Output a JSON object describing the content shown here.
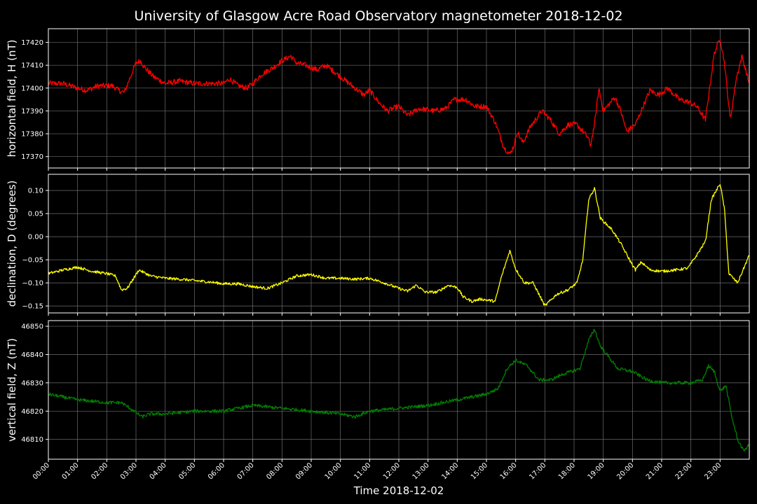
{
  "chart_data": {
    "type": "line",
    "title": "University of Glasgow Acre Road Observatory magnetometer 2018-12-02",
    "xlabel": "Time 2018-12-02",
    "x_range_hours": [
      0,
      24
    ],
    "x_ticks": [
      "00:00",
      "01:00",
      "02:00",
      "03:00",
      "04:00",
      "05:00",
      "06:00",
      "07:00",
      "08:00",
      "09:00",
      "10:00",
      "11:00",
      "12:00",
      "13:00",
      "14:00",
      "15:00",
      "16:00",
      "17:00",
      "18:00",
      "19:00",
      "20:00",
      "21:00",
      "22:00",
      "23:00"
    ],
    "grid": true,
    "background": "#000000",
    "panels": [
      {
        "ylabel": "horizontal field, H (nT)",
        "color": "#ff0000",
        "ylim": [
          17365,
          17426
        ],
        "yticks": [
          17370,
          17380,
          17390,
          17400,
          17410,
          17420
        ],
        "ytick_labels": [
          "17370",
          "17380",
          "17390",
          "17400",
          "17410",
          "17420"
        ],
        "noise": 1.2,
        "points": [
          [
            0,
            17402
          ],
          [
            0.5,
            17402
          ],
          [
            1,
            17400
          ],
          [
            1.3,
            17399
          ],
          [
            1.7,
            17401
          ],
          [
            2.2,
            17401
          ],
          [
            2.4,
            17399
          ],
          [
            2.6,
            17398
          ],
          [
            2.75,
            17403
          ],
          [
            3.0,
            17411
          ],
          [
            3.15,
            17412
          ],
          [
            3.3,
            17409
          ],
          [
            3.6,
            17405
          ],
          [
            4,
            17402
          ],
          [
            4.5,
            17403
          ],
          [
            5,
            17402
          ],
          [
            5.5,
            17402
          ],
          [
            6,
            17402
          ],
          [
            6.2,
            17404
          ],
          [
            6.5,
            17401
          ],
          [
            6.8,
            17400
          ],
          [
            7,
            17402
          ],
          [
            7.3,
            17406
          ],
          [
            7.7,
            17409
          ],
          [
            8,
            17412
          ],
          [
            8.3,
            17414
          ],
          [
            8.5,
            17411
          ],
          [
            8.8,
            17410
          ],
          [
            9.2,
            17408
          ],
          [
            9.5,
            17410
          ],
          [
            9.8,
            17407
          ],
          [
            10.1,
            17404
          ],
          [
            10.5,
            17400
          ],
          [
            10.8,
            17397
          ],
          [
            11.0,
            17399
          ],
          [
            11.3,
            17394
          ],
          [
            11.6,
            17390
          ],
          [
            12,
            17392
          ],
          [
            12.3,
            17388
          ],
          [
            12.7,
            17391
          ],
          [
            13.2,
            17390
          ],
          [
            13.6,
            17391
          ],
          [
            13.9,
            17395
          ],
          [
            14.3,
            17395
          ],
          [
            14.6,
            17392
          ],
          [
            15,
            17392
          ],
          [
            15.3,
            17385
          ],
          [
            15.6,
            17374
          ],
          [
            15.8,
            17371
          ],
          [
            15.95,
            17375
          ],
          [
            16.05,
            17381
          ],
          [
            16.25,
            17376
          ],
          [
            16.5,
            17383
          ],
          [
            16.9,
            17390
          ],
          [
            17.2,
            17386
          ],
          [
            17.5,
            17380
          ],
          [
            17.8,
            17384
          ],
          [
            18.1,
            17384
          ],
          [
            18.3,
            17381
          ],
          [
            18.5,
            17378
          ],
          [
            18.55,
            17374
          ],
          [
            18.7,
            17384
          ],
          [
            18.85,
            17400
          ],
          [
            19,
            17390
          ],
          [
            19.4,
            17396
          ],
          [
            19.6,
            17390
          ],
          [
            19.8,
            17381
          ],
          [
            20.1,
            17384
          ],
          [
            20.4,
            17393
          ],
          [
            20.6,
            17399
          ],
          [
            20.9,
            17397
          ],
          [
            21.2,
            17400
          ],
          [
            21.6,
            17395
          ],
          [
            21.9,
            17394
          ],
          [
            22.2,
            17392
          ],
          [
            22.5,
            17386
          ],
          [
            22.6,
            17396
          ],
          [
            22.8,
            17415
          ],
          [
            23.0,
            17422
          ],
          [
            23.15,
            17411
          ],
          [
            23.35,
            17386
          ],
          [
            23.55,
            17404
          ],
          [
            23.75,
            17414
          ],
          [
            24,
            17402
          ]
        ]
      },
      {
        "ylabel": "declination, D (degrees)",
        "color": "#ffff00",
        "ylim": [
          -0.165,
          0.135
        ],
        "yticks": [
          -0.15,
          -0.1,
          -0.05,
          0.0,
          0.05,
          0.1
        ],
        "ytick_labels": [
          "−0.15",
          "−0.10",
          "−0.05",
          "0.00",
          "0.05",
          "0.10"
        ],
        "noise": 0.003,
        "points": [
          [
            0,
            -0.08
          ],
          [
            0.5,
            -0.072
          ],
          [
            1,
            -0.066
          ],
          [
            1.5,
            -0.075
          ],
          [
            2,
            -0.08
          ],
          [
            2.3,
            -0.085
          ],
          [
            2.5,
            -0.115
          ],
          [
            2.7,
            -0.112
          ],
          [
            3.1,
            -0.072
          ],
          [
            3.5,
            -0.085
          ],
          [
            4,
            -0.09
          ],
          [
            4.5,
            -0.092
          ],
          [
            5,
            -0.095
          ],
          [
            5.5,
            -0.098
          ],
          [
            6,
            -0.102
          ],
          [
            6.5,
            -0.102
          ],
          [
            7,
            -0.108
          ],
          [
            7.5,
            -0.112
          ],
          [
            8,
            -0.1
          ],
          [
            8.5,
            -0.085
          ],
          [
            9,
            -0.082
          ],
          [
            9.5,
            -0.09
          ],
          [
            10,
            -0.09
          ],
          [
            10.5,
            -0.092
          ],
          [
            11,
            -0.09
          ],
          [
            11.5,
            -0.1
          ],
          [
            12,
            -0.112
          ],
          [
            12.3,
            -0.118
          ],
          [
            12.6,
            -0.105
          ],
          [
            12.9,
            -0.12
          ],
          [
            13.3,
            -0.12
          ],
          [
            13.7,
            -0.105
          ],
          [
            14,
            -0.11
          ],
          [
            14.2,
            -0.13
          ],
          [
            14.5,
            -0.14
          ],
          [
            14.8,
            -0.135
          ],
          [
            15.3,
            -0.14
          ],
          [
            15.5,
            -0.09
          ],
          [
            15.8,
            -0.03
          ],
          [
            16.0,
            -0.07
          ],
          [
            16.3,
            -0.1
          ],
          [
            16.6,
            -0.1
          ],
          [
            17,
            -0.15
          ],
          [
            17.4,
            -0.125
          ],
          [
            17.8,
            -0.115
          ],
          [
            18.1,
            -0.1
          ],
          [
            18.3,
            -0.05
          ],
          [
            18.5,
            0.08
          ],
          [
            18.7,
            0.105
          ],
          [
            18.9,
            0.04
          ],
          [
            19.3,
            0.015
          ],
          [
            19.6,
            -0.015
          ],
          [
            19.9,
            -0.05
          ],
          [
            20.1,
            -0.072
          ],
          [
            20.3,
            -0.055
          ],
          [
            20.6,
            -0.072
          ],
          [
            21,
            -0.075
          ],
          [
            21.5,
            -0.072
          ],
          [
            21.9,
            -0.068
          ],
          [
            22.2,
            -0.04
          ],
          [
            22.5,
            -0.01
          ],
          [
            22.7,
            0.08
          ],
          [
            23,
            0.115
          ],
          [
            23.15,
            0.06
          ],
          [
            23.3,
            -0.08
          ],
          [
            23.6,
            -0.1
          ],
          [
            24,
            -0.04
          ]
        ]
      },
      {
        "ylabel": "vertical field, Z (nT)",
        "color": "#008000",
        "ylim": [
          46803,
          46852
        ],
        "yticks": [
          46810,
          46820,
          46830,
          46840,
          46850
        ],
        "ytick_labels": [
          "46810",
          "46820",
          "46830",
          "46840",
          "46850"
        ],
        "noise": 0.6,
        "points": [
          [
            0,
            46826
          ],
          [
            0.5,
            46825
          ],
          [
            1,
            46824
          ],
          [
            2,
            46823
          ],
          [
            2.5,
            46823
          ],
          [
            2.8,
            46821
          ],
          [
            3.2,
            46818
          ],
          [
            3.5,
            46819
          ],
          [
            4,
            46819
          ],
          [
            5,
            46820
          ],
          [
            6,
            46820
          ],
          [
            7,
            46822
          ],
          [
            8,
            46821
          ],
          [
            9,
            46820
          ],
          [
            10,
            46819
          ],
          [
            10.5,
            46818
          ],
          [
            11,
            46820
          ],
          [
            12,
            46821
          ],
          [
            13,
            46822
          ],
          [
            14,
            46824
          ],
          [
            15,
            46826
          ],
          [
            15.4,
            46828
          ],
          [
            15.7,
            46835
          ],
          [
            16,
            46838
          ],
          [
            16.4,
            46836
          ],
          [
            16.8,
            46831
          ],
          [
            17.2,
            46831
          ],
          [
            17.6,
            46833
          ],
          [
            18.2,
            46835
          ],
          [
            18.5,
            46845
          ],
          [
            18.7,
            46849
          ],
          [
            18.9,
            46843
          ],
          [
            19.2,
            46839
          ],
          [
            19.5,
            46835
          ],
          [
            20,
            46834
          ],
          [
            20.5,
            46831
          ],
          [
            21,
            46830
          ],
          [
            21.5,
            46830
          ],
          [
            22,
            46830
          ],
          [
            22.4,
            46831
          ],
          [
            22.6,
            46836
          ],
          [
            22.8,
            46834
          ],
          [
            23,
            46827
          ],
          [
            23.2,
            46829
          ],
          [
            23.4,
            46818
          ],
          [
            23.6,
            46810
          ],
          [
            23.8,
            46806
          ],
          [
            24,
            46808
          ]
        ]
      }
    ]
  }
}
